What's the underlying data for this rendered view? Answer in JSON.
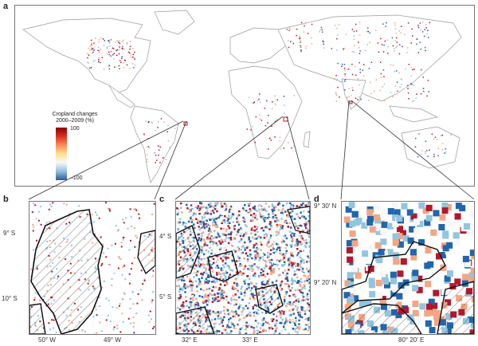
{
  "panels": {
    "a": {
      "letter": "a"
    },
    "b": {
      "letter": "b",
      "lat_ticks": [
        "9° S",
        "10° S"
      ],
      "lon_ticks": [
        "50° W",
        "49° W"
      ]
    },
    "c": {
      "letter": "c",
      "lat_ticks": [
        "4° S",
        "5° S"
      ],
      "lon_ticks": [
        "32° E",
        "33° E"
      ]
    },
    "d": {
      "letter": "d",
      "lat_ticks": [
        "9° 30′ N",
        "9° 20′ N"
      ],
      "lon_ticks": [
        "80° 20′ E"
      ]
    }
  },
  "legend": {
    "title_line1": "Cropland changes",
    "title_line2": "2000–2009 (%)",
    "max_label": "100",
    "min_label": "–100"
  },
  "colors": {
    "increase": "#b2182b",
    "mid_increase": "#f4a582",
    "neutral": "#f7f7f7",
    "mid_decrease": "#92c5de",
    "decrease": "#2166ac",
    "land": "#ffffff",
    "borders": "#9a9a9a"
  }
}
